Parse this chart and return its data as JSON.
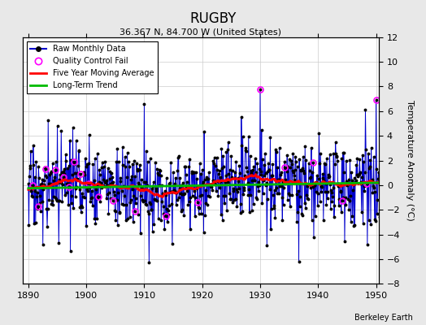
{
  "title": "RUGBY",
  "subtitle": "36.367 N, 84.700 W (United States)",
  "ylabel": "Temperature Anomaly (°C)",
  "xlabel_credit": "Berkeley Earth",
  "year_start": 1890,
  "year_end": 1951,
  "ylim": [
    -8,
    12
  ],
  "yticks": [
    -8,
    -6,
    -4,
    -2,
    0,
    2,
    4,
    6,
    8,
    10,
    12
  ],
  "xticks": [
    1890,
    1900,
    1910,
    1920,
    1930,
    1940,
    1950
  ],
  "raw_color": "#0000cc",
  "moving_avg_color": "#ff0000",
  "trend_color": "#00bb00",
  "qc_fail_color": "#ff00ff",
  "plot_bg_color": "#ffffff",
  "fig_bg_color": "#e8e8e8",
  "legend_loc": "upper left"
}
